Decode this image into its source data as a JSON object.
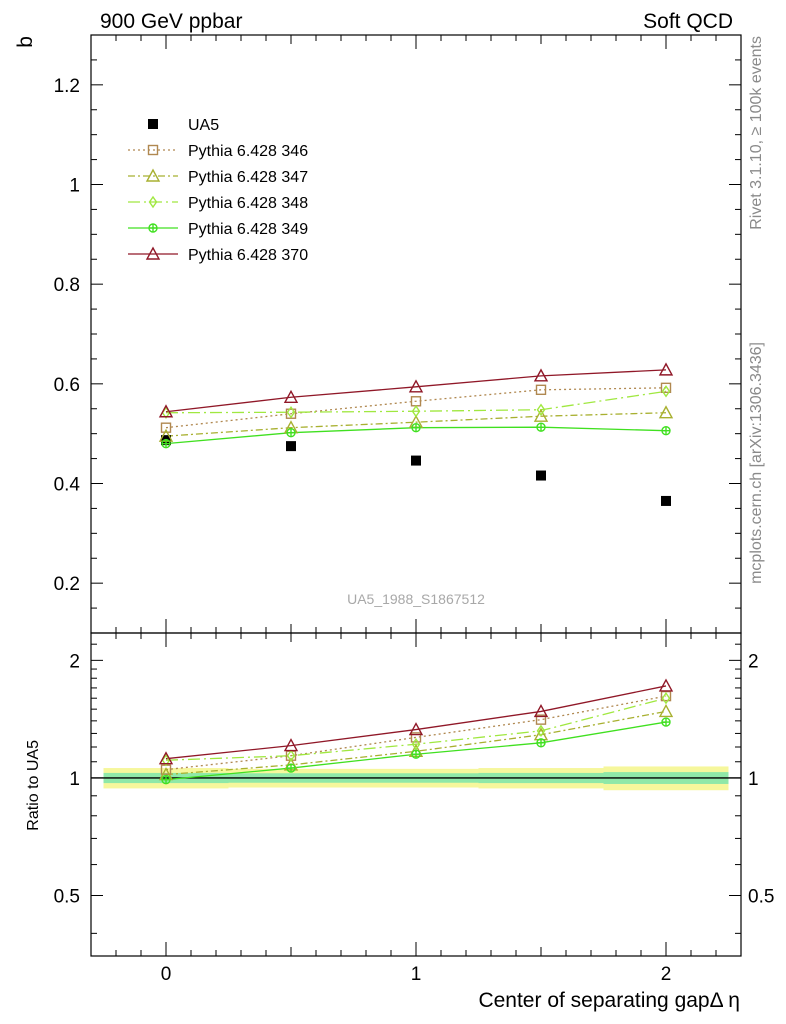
{
  "header": {
    "left_title": "900 GeV ppbar",
    "right_title": "Soft QCD"
  },
  "side_labels": {
    "rivet": "Rivet 3.1.10, ≥ 100k events",
    "mcplots": "mcplots.cern.ch [arXiv:1306.3436]"
  },
  "watermark": "UA5_1988_S1867512",
  "colors": {
    "data": "#000000",
    "p346": "#b08850",
    "p347": "#a8b030",
    "p348": "#a0e840",
    "p349": "#40e020",
    "p370": "#901828",
    "band_outer": "#f6f79c",
    "band_inner": "#8fe8a8"
  },
  "chart_data": [
    {
      "type": "scatter",
      "title": "",
      "xlabel": "Center of separating gapΔ η",
      "ylabel": "b",
      "xlim": [
        -0.3,
        2.3
      ],
      "ylim": [
        0.1,
        1.3
      ],
      "yticks": [
        "0.2",
        "0.4",
        "0.6",
        "0.8",
        "1",
        "1.2"
      ],
      "ytick_values": [
        0.2,
        0.4,
        0.6,
        0.8,
        1.0,
        1.2
      ],
      "x": [
        0,
        0.5,
        1,
        1.5,
        2
      ],
      "legend_position": "top-left",
      "series": [
        {
          "name": "UA5",
          "key": "data",
          "marker": "filled-square",
          "values": [
            0.487,
            0.475,
            0.446,
            0.416,
            0.365
          ]
        },
        {
          "name": "Pythia 6.428 346",
          "key": "p346",
          "marker": "open-square",
          "dash": "dotted",
          "values": [
            0.512,
            0.54,
            0.565,
            0.588,
            0.592
          ]
        },
        {
          "name": "Pythia 6.428 347",
          "key": "p347",
          "marker": "open-triangle",
          "dash": "dashdot",
          "values": [
            0.495,
            0.512,
            0.523,
            0.535,
            0.542
          ]
        },
        {
          "name": "Pythia 6.428 348",
          "key": "p348",
          "marker": "open-diamond",
          "dash": "longdashdot",
          "values": [
            0.542,
            0.543,
            0.545,
            0.548,
            0.585
          ]
        },
        {
          "name": "Pythia 6.428 349",
          "key": "p349",
          "marker": "crossed-circle",
          "dash": "solid",
          "values": [
            0.48,
            0.502,
            0.512,
            0.513,
            0.506
          ]
        },
        {
          "name": "Pythia 6.428 370",
          "key": "p370",
          "marker": "open-triangle",
          "dash": "solid",
          "values": [
            0.544,
            0.573,
            0.594,
            0.616,
            0.628
          ]
        }
      ]
    },
    {
      "type": "line",
      "title": "",
      "xlabel": "Center of separating gapΔ η",
      "ylabel": "Ratio to UA5",
      "xlim": [
        -0.3,
        2.3
      ],
      "ylim": [
        0.35,
        2.35
      ],
      "xticks": [
        "0",
        "1",
        "2"
      ],
      "xtick_values": [
        0,
        1,
        2
      ],
      "yticks": [
        "0.5",
        "1",
        "2"
      ],
      "ytick_values": [
        0.5,
        1,
        2
      ],
      "x": [
        0,
        0.5,
        1,
        1.5,
        2
      ],
      "reference": 1,
      "band": {
        "edges": [
          -0.25,
          0.25,
          0.75,
          1.25,
          1.75,
          2.25
        ],
        "outer": [
          0.06,
          0.055,
          0.055,
          0.06,
          0.07
        ],
        "inner": [
          0.03,
          0.028,
          0.028,
          0.03,
          0.035
        ]
      },
      "series": [
        {
          "name": "Pythia 6.428 346",
          "key": "p346",
          "marker": "open-square",
          "dash": "dotted",
          "values": [
            1.05,
            1.14,
            1.27,
            1.41,
            1.62
          ]
        },
        {
          "name": "Pythia 6.428 347",
          "key": "p347",
          "marker": "open-triangle",
          "dash": "dashdot",
          "values": [
            1.02,
            1.08,
            1.17,
            1.29,
            1.48
          ]
        },
        {
          "name": "Pythia 6.428 348",
          "key": "p348",
          "marker": "open-diamond",
          "dash": "longdashdot",
          "values": [
            1.11,
            1.14,
            1.22,
            1.32,
            1.6
          ]
        },
        {
          "name": "Pythia 6.428 349",
          "key": "p349",
          "marker": "crossed-circle",
          "dash": "solid",
          "values": [
            0.99,
            1.06,
            1.15,
            1.23,
            1.39
          ]
        },
        {
          "name": "Pythia 6.428 370",
          "key": "p370",
          "marker": "open-triangle",
          "dash": "solid",
          "values": [
            1.12,
            1.21,
            1.33,
            1.48,
            1.72
          ]
        }
      ]
    }
  ]
}
